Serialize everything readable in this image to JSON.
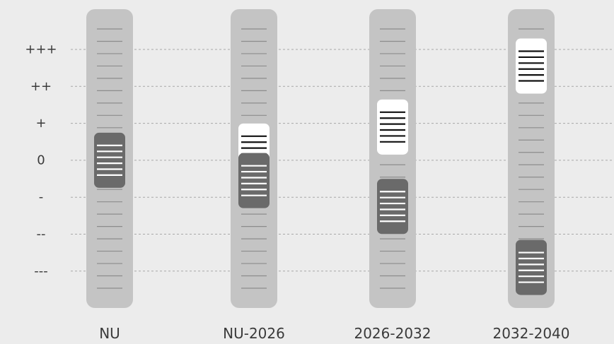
{
  "chart_data": {
    "type": "slider-range",
    "title": "",
    "xlabel": "",
    "ylabel": "",
    "y_levels": [
      "+++",
      "++",
      "+",
      "0",
      "-",
      "--",
      "---"
    ],
    "y_values": [
      3,
      2,
      1,
      0,
      -1,
      -2,
      -3
    ],
    "ylim": [
      -3.8,
      3.8
    ],
    "categories": [
      "NU",
      "NU-2026",
      "2026-2032",
      "2032-2040"
    ],
    "series": [
      {
        "color": "#6a6a6a",
        "line_color": "#ffffff",
        "values": [
          0,
          -0.55,
          -1.25,
          -2.9
        ]
      },
      {
        "color": "#ffffff",
        "line_color": "#111111",
        "values": [
          null,
          0.25,
          0.9,
          2.55
        ]
      }
    ],
    "grid": true,
    "colors": {
      "background": "#ececec",
      "track": "#c4c4c4",
      "track_tick": "#8c8c8c",
      "gridline": "#a8a8a8"
    }
  }
}
